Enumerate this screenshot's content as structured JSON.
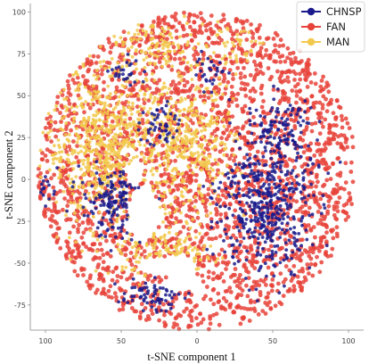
{
  "chart_data": {
    "type": "scatter",
    "title": "",
    "xlabel": "t-SNE component 1",
    "ylabel": "t-SNE component 2",
    "xlim": [
      -110,
      110
    ],
    "ylim": [
      -90,
      105
    ],
    "xticks": [
      {
        "value": -100,
        "label": "100"
      },
      {
        "value": -50,
        "label": "50"
      },
      {
        "value": 0,
        "label": "0"
      },
      {
        "value": 50,
        "label": "50"
      },
      {
        "value": 100,
        "label": "100"
      }
    ],
    "yticks": [
      {
        "value": 100,
        "label": "100"
      },
      {
        "value": 75,
        "label": "75"
      },
      {
        "value": 50,
        "label": "50"
      },
      {
        "value": 25,
        "label": "25"
      },
      {
        "value": 0,
        "label": "0"
      },
      {
        "value": -25,
        "label": "25"
      },
      {
        "value": -50,
        "label": "-50"
      },
      {
        "value": -75,
        "label": "-75"
      }
    ],
    "grid": false,
    "legend_position": "top-right",
    "series": [
      {
        "name": "CHNSP",
        "color": "#1a1a8c",
        "regions": [
          {
            "cx": 45,
            "cy": -15,
            "rx": 30,
            "ry": 42,
            "density": 1.0
          },
          {
            "cx": 55,
            "cy": 30,
            "rx": 22,
            "ry": 20,
            "density": 0.7
          },
          {
            "cx": -55,
            "cy": -15,
            "rx": 22,
            "ry": 20,
            "density": 0.9
          },
          {
            "cx": -30,
            "cy": -68,
            "rx": 20,
            "ry": 10,
            "density": 0.9
          },
          {
            "cx": -25,
            "cy": 32,
            "rx": 12,
            "ry": 14,
            "density": 0.8
          },
          {
            "cx": -45,
            "cy": 65,
            "rx": 12,
            "ry": 10,
            "density": 0.6
          },
          {
            "cx": 10,
            "cy": 65,
            "rx": 12,
            "ry": 10,
            "density": 0.6
          },
          {
            "cx": -100,
            "cy": -5,
            "rx": 8,
            "ry": 10,
            "density": 0.5
          }
        ]
      },
      {
        "name": "FAN",
        "color": "#e8433a",
        "regions": [
          {
            "cx": 0,
            "cy": 5,
            "rx": 105,
            "ry": 95,
            "density": 1.0
          }
        ]
      },
      {
        "name": "MAN",
        "color": "#f2c94c",
        "regions": [
          {
            "cx": -60,
            "cy": 20,
            "rx": 40,
            "ry": 45,
            "density": 0.8
          },
          {
            "cx": -5,
            "cy": 20,
            "rx": 30,
            "ry": 40,
            "density": 0.7
          },
          {
            "cx": -20,
            "cy": -45,
            "rx": 30,
            "ry": 15,
            "density": 0.6
          },
          {
            "cx": -30,
            "cy": 80,
            "rx": 35,
            "ry": 15,
            "density": 0.5
          },
          {
            "cx": 25,
            "cy": 80,
            "rx": 20,
            "ry": 12,
            "density": 0.4
          }
        ]
      }
    ]
  }
}
